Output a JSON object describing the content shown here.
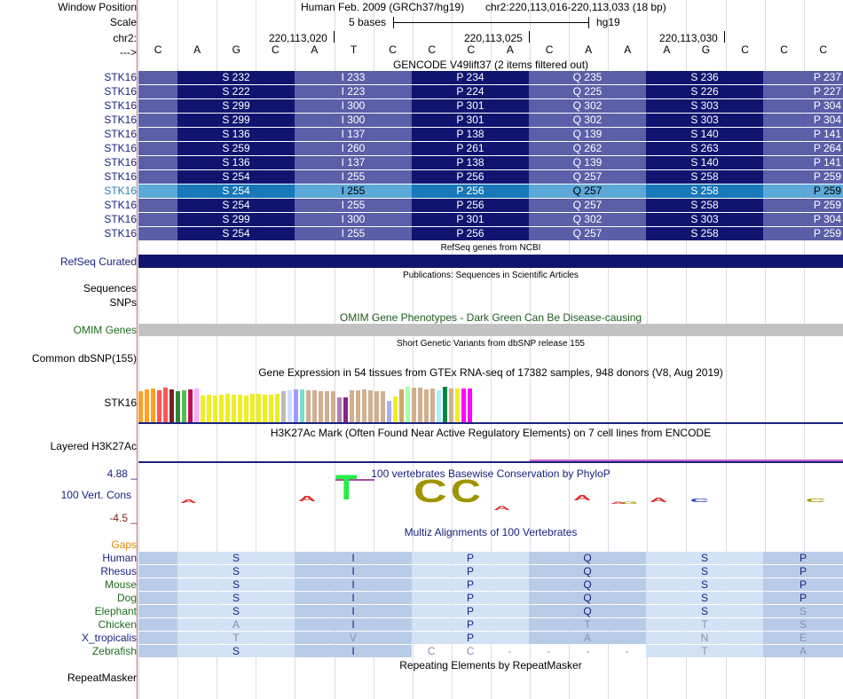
{
  "header": {
    "window_position_label": "Window Position",
    "assembly_text": "Human Feb. 2009 (GRCh37/hg19)",
    "position_text": "chr2:220,113,016-220,113,033 (18 bp)",
    "scale_label": "Scale",
    "scale_text": "5 bases",
    "scale_db": "hg19",
    "chrom_label": "chr2:",
    "coords": [
      "220,113,020",
      "220,113,025",
      "220,113,030"
    ],
    "strand_label": "--->",
    "bases": [
      "C",
      "A",
      "G",
      "C",
      "A",
      "T",
      "C",
      "C",
      "C",
      "A",
      "C",
      "A",
      "A",
      "A",
      "G",
      "C",
      "C",
      "C"
    ]
  },
  "gencode": {
    "title": "GENCODE V49lift37 (2 items filtered out)",
    "rows": [
      {
        "label": "STK16",
        "codons": [
          "S 232",
          "I 233",
          "P 234",
          "Q 235",
          "S 236",
          "P 237"
        ],
        "highlight": false
      },
      {
        "label": "STK16",
        "codons": [
          "S 222",
          "I 223",
          "P 224",
          "Q 225",
          "S 226",
          "P 227"
        ],
        "highlight": false
      },
      {
        "label": "STK16",
        "codons": [
          "S 299",
          "I 300",
          "P 301",
          "Q 302",
          "S 303",
          "P 304"
        ],
        "highlight": false
      },
      {
        "label": "STK16",
        "codons": [
          "S 299",
          "I 300",
          "P 301",
          "Q 302",
          "S 303",
          "P 304"
        ],
        "highlight": false
      },
      {
        "label": "STK16",
        "codons": [
          "S 136",
          "I 137",
          "P 138",
          "Q 139",
          "S 140",
          "P 141"
        ],
        "highlight": false
      },
      {
        "label": "STK16",
        "codons": [
          "S 259",
          "I 260",
          "P 261",
          "Q 262",
          "S 263",
          "P 264"
        ],
        "highlight": false
      },
      {
        "label": "STK16",
        "codons": [
          "S 136",
          "I 137",
          "P 138",
          "Q 139",
          "S 140",
          "P 141"
        ],
        "highlight": false
      },
      {
        "label": "STK16",
        "codons": [
          "S 254",
          "I 255",
          "P 256",
          "Q 257",
          "S 258",
          "P 259"
        ],
        "highlight": false
      },
      {
        "label": "STK16",
        "codons": [
          "S 254",
          "I 255",
          "P 256",
          "Q 257",
          "S 258",
          "P 259"
        ],
        "highlight": true
      },
      {
        "label": "STK16",
        "codons": [
          "S 254",
          "I 255",
          "P 256",
          "Q 257",
          "S 258",
          "P 259"
        ],
        "highlight": false
      },
      {
        "label": "STK16",
        "codons": [
          "S 299",
          "I 300",
          "P 301",
          "Q 302",
          "S 303",
          "P 304"
        ],
        "highlight": false
      },
      {
        "label": "STK16",
        "codons": [
          "S 254",
          "I 255",
          "P 256",
          "Q 257",
          "S 258",
          "P 259"
        ],
        "highlight": false
      }
    ]
  },
  "refseq": {
    "title": "RefSeq genes from NCBI",
    "label": "RefSeq Curated"
  },
  "publications": {
    "title": "Publications: Sequences in Scientific Articles",
    "label1": "Sequences",
    "label2": "SNPs"
  },
  "omim": {
    "title": "OMIM Gene Phenotypes - Dark Green Can Be Disease-causing",
    "label": "OMIM Genes"
  },
  "dbsnp": {
    "title": "Short Genetic Variants from dbSNP release 155",
    "label": "Common dbSNP(155)"
  },
  "gtex": {
    "title": "Gene Expression in 54 tissues from GTEx RNA-seq of 17382 samples, 948 donors (V8, Aug 2019)",
    "label": "STK16",
    "colors": [
      "#ff9f2a",
      "#ff9f2a",
      "#ff9f2a",
      "#ff5555",
      "#ff5555",
      "#7a1f2a",
      "#338833",
      "#55bb55",
      "#bb1155",
      "#ffaaff",
      "#eeee22",
      "#eeee22",
      "#eeee22",
      "#eeee22",
      "#eeee22",
      "#eeee22",
      "#eeee22",
      "#eeee22",
      "#eeee22",
      "#eeee22",
      "#eeee22",
      "#eeee22",
      "#eeee22",
      "#bbbbbb",
      "#ccddff",
      "#a099ff",
      "#77ddcc",
      "#d0b090",
      "#d0b090",
      "#d0b090",
      "#d0b090",
      "#d0b090",
      "#b080b0",
      "#882288",
      "#d0b090",
      "#d0b090",
      "#d0b090",
      "#d0b090",
      "#d0b090",
      "#d0b090",
      "#aaaaff",
      "#eeee22",
      "#ccaa66",
      "#aaffaa",
      "#d0b090",
      "#d0b090",
      "#d0b090",
      "#d0b090",
      "#aaeeff",
      "#008844",
      "#d0b090",
      "#eeee22",
      "#ff00ff",
      "#ff00ff"
    ],
    "heights": [
      0.75,
      0.8,
      0.82,
      0.78,
      0.85,
      0.8,
      0.76,
      0.78,
      0.8,
      0.82,
      0.65,
      0.67,
      0.66,
      0.68,
      0.7,
      0.67,
      0.68,
      0.66,
      0.69,
      0.7,
      0.67,
      0.68,
      0.69,
      0.75,
      0.79,
      0.8,
      0.8,
      0.78,
      0.78,
      0.77,
      0.77,
      0.76,
      0.6,
      0.6,
      0.79,
      0.78,
      0.8,
      0.78,
      0.77,
      0.76,
      0.52,
      0.62,
      0.8,
      0.86,
      0.85,
      0.84,
      0.8,
      0.82,
      0.78,
      0.88,
      0.82,
      0.82,
      0.82,
      0.82
    ]
  },
  "h3k27ac": {
    "title": "H3K27Ac Mark (Often Found Near Active Regulatory Elements) on 7 cell lines from ENCODE",
    "label": "Layered H3K27Ac"
  },
  "phylop": {
    "title": "100 vertebrates Basewise Conservation by PhyloP",
    "label": "100 Vert. Cons",
    "max": "4.88 _",
    "min": "-4.5 _",
    "big_letters": [
      "T",
      "C",
      "C"
    ],
    "small_letters": [
      "A",
      "A",
      "A",
      "A",
      "A",
      "A",
      "C",
      "G",
      "C"
    ]
  },
  "multiz": {
    "title": "Multiz Alignments of 100 Vertebrates",
    "gaps_label": "Gaps",
    "species": [
      {
        "name": "Human",
        "color": "#1a237e",
        "aa": [
          "S",
          "I",
          "P",
          "Q",
          "S",
          "P"
        ]
      },
      {
        "name": "Rhesus",
        "color": "#1a237e",
        "aa": [
          "S",
          "I",
          "P",
          "Q",
          "S",
          "P"
        ]
      },
      {
        "name": "Mouse",
        "color": "#1e6b1e",
        "aa": [
          "S",
          "I",
          "P",
          "Q",
          "S",
          "P"
        ]
      },
      {
        "name": "Dog",
        "color": "#1e6b1e",
        "aa": [
          "S",
          "I",
          "P",
          "Q",
          "S",
          "P"
        ]
      },
      {
        "name": "Elephant",
        "color": "#1e6b1e",
        "aa": [
          "S",
          "I",
          "P",
          "Q",
          "S",
          "S"
        ]
      },
      {
        "name": "Chicken",
        "color": "#1e6b1e",
        "aa": [
          "A",
          "I",
          "P",
          "T",
          "T",
          "S"
        ]
      },
      {
        "name": "X_tropicalis",
        "color": "#1a237e",
        "aa": [
          "T",
          "V",
          "P",
          "A",
          "N",
          "E"
        ]
      },
      {
        "name": "Zebrafish",
        "color": "#1e6b1e",
        "aa": [
          "S",
          "I",
          "",
          "",
          "T",
          "A"
        ]
      }
    ],
    "zebrafish_bases": [
      "C",
      "C",
      "-",
      "-",
      "-",
      "-"
    ]
  },
  "repeatmasker": {
    "title": "Repeating Elements by RepeatMasker",
    "label": "RepeatMasker"
  }
}
